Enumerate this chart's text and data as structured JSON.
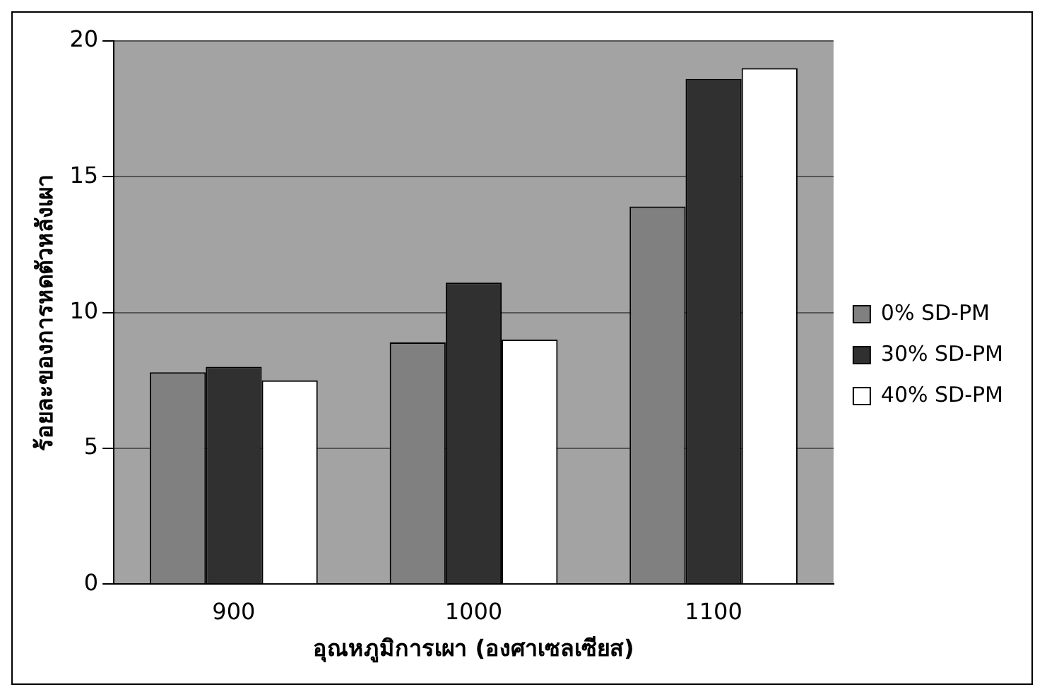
{
  "chart_data": {
    "type": "bar",
    "xlabel": "อุณหภูมิการเผา (องศาเซลเซียส)",
    "ylabel": "ร้อยละของการหดตัวหลังเผา",
    "categories": [
      "900",
      "1000",
      "1100"
    ],
    "series": [
      {
        "name": "0% SD-PM",
        "color": "#808080",
        "values": [
          7.8,
          8.9,
          13.9
        ]
      },
      {
        "name": "30% SD-PM",
        "color": "#303030",
        "values": [
          8.0,
          11.1,
          18.6
        ]
      },
      {
        "name": "40% SD-PM",
        "color": "#ffffff",
        "values": [
          7.5,
          9.0,
          19.0
        ]
      }
    ],
    "ylim": [
      0,
      20
    ],
    "yticks": [
      0,
      5,
      10,
      15,
      20
    ],
    "grid": "y",
    "legend": "right"
  }
}
